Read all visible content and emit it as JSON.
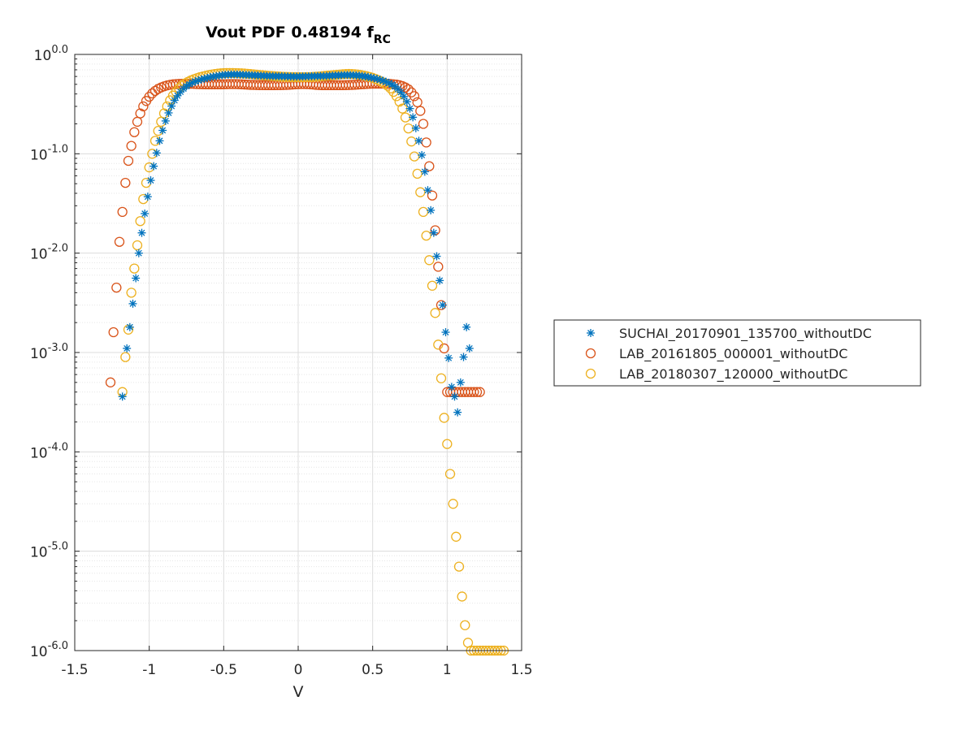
{
  "chart_data": {
    "type": "scatter",
    "title": {
      "main": "Vout PDF 0.48194 f",
      "sub": "RC"
    },
    "xlabel": "V",
    "ylabel": "",
    "xlim": [
      -1.5,
      1.5
    ],
    "ylim_log10": [
      -6,
      0
    ],
    "yscale": "log",
    "grid": true,
    "minor_grid": true,
    "legend_position": "outside-right",
    "x_ticks": [
      -1.5,
      -1,
      -0.5,
      0,
      0.5,
      1,
      1.5
    ],
    "x_tick_labels": [
      "-1.5",
      "-1",
      "-0.5",
      "0",
      "0.5",
      "1",
      "1.5"
    ],
    "y_ticks": [
      0,
      -1,
      -2,
      -3,
      -4,
      -5,
      -6
    ],
    "y_tick_labels": [
      {
        "base": "10",
        "exp": "0.0"
      },
      {
        "base": "10",
        "exp": "-1.0"
      },
      {
        "base": "10",
        "exp": "-2.0"
      },
      {
        "base": "10",
        "exp": "-3.0"
      },
      {
        "base": "10",
        "exp": "-4.0"
      },
      {
        "base": "10",
        "exp": "-5.0"
      },
      {
        "base": "10",
        "exp": "-6.0"
      }
    ],
    "series": [
      {
        "name": "SUCHAI_20170901_135700_withoutDC",
        "marker": "asterisk",
        "color": "#0072BD",
        "x": [
          -1.18,
          -1.15,
          -1.13,
          -1.11,
          -1.09,
          -1.07,
          -1.05,
          -1.03,
          -1.01,
          -0.99,
          -0.97,
          -0.95,
          -0.93,
          -0.91,
          -0.89,
          -0.87,
          -0.85,
          -0.83,
          -0.81,
          -0.79,
          -0.77,
          -0.75,
          -0.73,
          -0.71,
          -0.69,
          -0.67,
          -0.65,
          -0.63,
          -0.61,
          -0.59,
          -0.57,
          -0.55,
          -0.53,
          -0.51,
          -0.49,
          -0.47,
          -0.45,
          -0.43,
          -0.41,
          -0.39,
          -0.37,
          -0.35,
          -0.33,
          -0.31,
          -0.29,
          -0.27,
          -0.25,
          -0.23,
          -0.21,
          -0.19,
          -0.17,
          -0.15,
          -0.13,
          -0.11,
          -0.09,
          -0.07,
          -0.05,
          -0.03,
          -0.01,
          0.01,
          0.03,
          0.05,
          0.07,
          0.09,
          0.11,
          0.13,
          0.15,
          0.17,
          0.19,
          0.21,
          0.23,
          0.25,
          0.27,
          0.29,
          0.31,
          0.33,
          0.35,
          0.37,
          0.39,
          0.41,
          0.43,
          0.45,
          0.47,
          0.49,
          0.51,
          0.53,
          0.55,
          0.57,
          0.59,
          0.61,
          0.63,
          0.65,
          0.67,
          0.69,
          0.71,
          0.73,
          0.75,
          0.77,
          0.79,
          0.81,
          0.83,
          0.85,
          0.87,
          0.89,
          0.91,
          0.93,
          0.95,
          0.97,
          0.99,
          1.01,
          1.03,
          1.05,
          1.07,
          1.09,
          1.11,
          1.13,
          1.15
        ],
        "y": [
          0.00036,
          0.0011,
          0.0018,
          0.0031,
          0.0056,
          0.01,
          0.016,
          0.025,
          0.037,
          0.054,
          0.075,
          0.102,
          0.135,
          0.172,
          0.214,
          0.258,
          0.302,
          0.345,
          0.384,
          0.42,
          0.452,
          0.478,
          0.5,
          0.52,
          0.535,
          0.548,
          0.56,
          0.57,
          0.58,
          0.59,
          0.598,
          0.605,
          0.612,
          0.618,
          0.623,
          0.626,
          0.628,
          0.629,
          0.628,
          0.626,
          0.624,
          0.622,
          0.62,
          0.618,
          0.616,
          0.614,
          0.612,
          0.61,
          0.608,
          0.606,
          0.605,
          0.604,
          0.603,
          0.602,
          0.601,
          0.6,
          0.599,
          0.598,
          0.598,
          0.599,
          0.6,
          0.601,
          0.602,
          0.603,
          0.604,
          0.605,
          0.606,
          0.607,
          0.608,
          0.61,
          0.612,
          0.614,
          0.616,
          0.618,
          0.62,
          0.621,
          0.62,
          0.618,
          0.615,
          0.611,
          0.606,
          0.6,
          0.593,
          0.585,
          0.576,
          0.566,
          0.555,
          0.543,
          0.53,
          0.515,
          0.497,
          0.475,
          0.448,
          0.416,
          0.378,
          0.334,
          0.285,
          0.233,
          0.181,
          0.135,
          0.097,
          0.066,
          0.043,
          0.027,
          0.016,
          0.0093,
          0.0053,
          0.003,
          0.0016,
          0.00088,
          0.00045,
          0.00036,
          0.00025,
          0.0005,
          0.0009,
          0.0018,
          0.0011
        ],
        "x_display_note": ""
      },
      {
        "name": "LAB_20161805_000001_withoutDC",
        "marker": "circle",
        "color": "#D95319",
        "x": [
          -1.26,
          -1.24,
          -1.22,
          -1.2,
          -1.18,
          -1.16,
          -1.14,
          -1.12,
          -1.1,
          -1.08,
          -1.06,
          -1.04,
          -1.02,
          -1.0,
          -0.98,
          -0.96,
          -0.94,
          -0.92,
          -0.9,
          -0.88,
          -0.86,
          -0.84,
          -0.82,
          -0.8,
          -0.78,
          -0.76,
          -0.74,
          -0.72,
          -0.7,
          -0.68,
          -0.66,
          -0.64,
          -0.62,
          -0.6,
          -0.58,
          -0.56,
          -0.54,
          -0.52,
          -0.5,
          -0.48,
          -0.46,
          -0.44,
          -0.42,
          -0.4,
          -0.38,
          -0.36,
          -0.34,
          -0.32,
          -0.3,
          -0.28,
          -0.26,
          -0.24,
          -0.22,
          -0.2,
          -0.18,
          -0.16,
          -0.14,
          -0.12,
          -0.1,
          -0.08,
          -0.06,
          -0.04,
          -0.02,
          0.0,
          0.02,
          0.04,
          0.06,
          0.08,
          0.1,
          0.12,
          0.14,
          0.16,
          0.18,
          0.2,
          0.22,
          0.24,
          0.26,
          0.28,
          0.3,
          0.32,
          0.34,
          0.36,
          0.38,
          0.4,
          0.42,
          0.44,
          0.46,
          0.48,
          0.5,
          0.52,
          0.54,
          0.56,
          0.58,
          0.6,
          0.62,
          0.64,
          0.66,
          0.68,
          0.7,
          0.72,
          0.74,
          0.76,
          0.78,
          0.8,
          0.82,
          0.84,
          0.86,
          0.88,
          0.9,
          0.92,
          0.94,
          0.96,
          0.98,
          1.0,
          1.02,
          1.04,
          1.06,
          1.08,
          1.1,
          1.12,
          1.14,
          1.16,
          1.18,
          1.2,
          1.22
        ],
        "y": [
          0.0005,
          0.0016,
          0.0045,
          0.013,
          0.026,
          0.051,
          0.085,
          0.12,
          0.165,
          0.21,
          0.255,
          0.3,
          0.34,
          0.375,
          0.405,
          0.43,
          0.45,
          0.465,
          0.478,
          0.488,
          0.495,
          0.5,
          0.503,
          0.505,
          0.506,
          0.507,
          0.507,
          0.506,
          0.505,
          0.503,
          0.502,
          0.501,
          0.5,
          0.5,
          0.5,
          0.5,
          0.5,
          0.5,
          0.501,
          0.502,
          0.503,
          0.503,
          0.503,
          0.502,
          0.5,
          0.498,
          0.496,
          0.494,
          0.493,
          0.492,
          0.491,
          0.491,
          0.49,
          0.49,
          0.49,
          0.49,
          0.491,
          0.491,
          0.492,
          0.493,
          0.495,
          0.497,
          0.5,
          0.502,
          0.503,
          0.503,
          0.502,
          0.5,
          0.497,
          0.494,
          0.492,
          0.49,
          0.49,
          0.49,
          0.49,
          0.49,
          0.49,
          0.49,
          0.49,
          0.491,
          0.492,
          0.493,
          0.495,
          0.497,
          0.5,
          0.502,
          0.504,
          0.506,
          0.507,
          0.508,
          0.508,
          0.508,
          0.507,
          0.506,
          0.504,
          0.501,
          0.497,
          0.49,
          0.48,
          0.465,
          0.445,
          0.415,
          0.38,
          0.33,
          0.27,
          0.2,
          0.13,
          0.075,
          0.038,
          0.017,
          0.0073,
          0.003,
          0.0011,
          0.0004,
          0.0004,
          0.0004,
          0.0004,
          0.0004,
          0.0004,
          0.0004,
          0.0004,
          0.0004,
          0.0004,
          0.0004,
          0.0004
        ],
        "x_display_note": ""
      },
      {
        "name": "LAB_20180307_120000_withoutDC",
        "marker": "circle",
        "color": "#EDB120",
        "x": [
          -1.18,
          -1.16,
          -1.14,
          -1.12,
          -1.1,
          -1.08,
          -1.06,
          -1.04,
          -1.02,
          -1.0,
          -0.98,
          -0.96,
          -0.94,
          -0.92,
          -0.9,
          -0.88,
          -0.86,
          -0.84,
          -0.82,
          -0.8,
          -0.78,
          -0.76,
          -0.74,
          -0.72,
          -0.7,
          -0.68,
          -0.66,
          -0.64,
          -0.62,
          -0.6,
          -0.58,
          -0.56,
          -0.54,
          -0.52,
          -0.5,
          -0.48,
          -0.46,
          -0.44,
          -0.42,
          -0.4,
          -0.38,
          -0.36,
          -0.34,
          -0.32,
          -0.3,
          -0.28,
          -0.26,
          -0.24,
          -0.22,
          -0.2,
          -0.18,
          -0.16,
          -0.14,
          -0.12,
          -0.1,
          -0.08,
          -0.06,
          -0.04,
          -0.02,
          0.0,
          0.02,
          0.04,
          0.06,
          0.08,
          0.1,
          0.12,
          0.14,
          0.16,
          0.18,
          0.2,
          0.22,
          0.24,
          0.26,
          0.28,
          0.3,
          0.32,
          0.34,
          0.36,
          0.38,
          0.4,
          0.42,
          0.44,
          0.46,
          0.48,
          0.5,
          0.52,
          0.54,
          0.56,
          0.58,
          0.6,
          0.62,
          0.64,
          0.66,
          0.68,
          0.7,
          0.72,
          0.74,
          0.76,
          0.78,
          0.8,
          0.82,
          0.84,
          0.86,
          0.88,
          0.9,
          0.92,
          0.94,
          0.96,
          0.98,
          1.0,
          1.02,
          1.04,
          1.06,
          1.08,
          1.1,
          1.12,
          1.14,
          1.16,
          1.18,
          1.2,
          1.22,
          1.24,
          1.26,
          1.28,
          1.3,
          1.32,
          1.34,
          1.36,
          1.38
        ],
        "y": [
          0.0004,
          0.0009,
          0.0017,
          0.004,
          0.007,
          0.012,
          0.021,
          0.035,
          0.051,
          0.073,
          0.1,
          0.135,
          0.17,
          0.21,
          0.255,
          0.3,
          0.345,
          0.385,
          0.42,
          0.455,
          0.485,
          0.51,
          0.53,
          0.548,
          0.563,
          0.577,
          0.59,
          0.6,
          0.61,
          0.62,
          0.628,
          0.635,
          0.64,
          0.645,
          0.648,
          0.65,
          0.65,
          0.65,
          0.649,
          0.647,
          0.645,
          0.642,
          0.638,
          0.634,
          0.63,
          0.626,
          0.622,
          0.618,
          0.614,
          0.61,
          0.607,
          0.604,
          0.601,
          0.598,
          0.596,
          0.594,
          0.593,
          0.592,
          0.591,
          0.59,
          0.59,
          0.59,
          0.591,
          0.592,
          0.594,
          0.597,
          0.6,
          0.604,
          0.608,
          0.612,
          0.616,
          0.62,
          0.624,
          0.628,
          0.632,
          0.635,
          0.636,
          0.635,
          0.632,
          0.627,
          0.621,
          0.613,
          0.604,
          0.593,
          0.58,
          0.566,
          0.55,
          0.532,
          0.51,
          0.484,
          0.455,
          0.42,
          0.38,
          0.335,
          0.285,
          0.232,
          0.18,
          0.133,
          0.094,
          0.063,
          0.041,
          0.026,
          0.015,
          0.0085,
          0.0047,
          0.0025,
          0.0012,
          0.00055,
          0.00022,
          0.00012,
          6e-05,
          3e-05,
          1.4e-05,
          7e-06,
          3.5e-06,
          1.8e-06,
          1.2e-06,
          1e-06,
          1e-06,
          1e-06,
          1e-06,
          1e-06,
          1e-06,
          1e-06,
          1e-06,
          1e-06,
          1e-06,
          1e-06,
          1e-06
        ],
        "x_display_note": ""
      }
    ]
  }
}
